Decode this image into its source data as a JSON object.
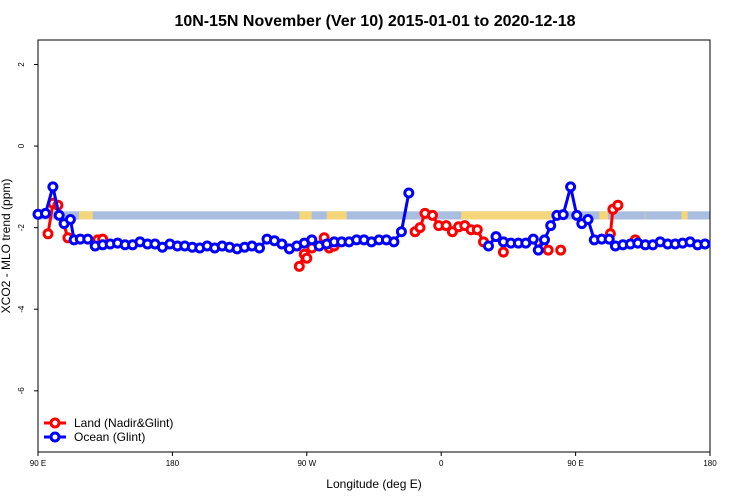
{
  "chart_data": {
    "type": "line",
    "title": "10N-15N November (Ver 10)   2015-01-01 to 2020-12-18",
    "xlabel": "Longitude (deg E)",
    "ylabel": "XCO2 - MLO trend (ppm)",
    "xlim": [
      -90,
      180
    ],
    "ylim": [
      -7.5,
      2.6
    ],
    "x_ticks": [
      {
        "value": -90,
        "label": "90 E"
      },
      {
        "value": -36,
        "label": "180"
      },
      {
        "value": 18,
        "label": "90 W"
      },
      {
        "value": 72,
        "label": "0"
      },
      {
        "value": 126,
        "label": "90 E"
      },
      {
        "value": 180,
        "label": "180"
      }
    ],
    "y_ticks": [
      2,
      0,
      -2,
      -4,
      -6
    ],
    "land_ocean_band": {
      "y_range": [
        -1.8,
        -1.6
      ],
      "ocean_color": "#a8bde0",
      "land_color": "#f5d67a",
      "land_intervals": [
        [
          -73.5,
          -68
        ],
        [
          15,
          20
        ],
        [
          26,
          34
        ],
        [
          80,
          117
        ],
        [
          135.5,
          139
        ],
        [
          153.8,
          154
        ],
        [
          168.5,
          171
        ]
      ]
    },
    "legend": "bottom-left",
    "series": [
      {
        "name": "Land (Nadir&Glint)",
        "color": "#ff0000",
        "segments": [
          [
            [
              -86,
              -2.15
            ],
            [
              -84,
              -1.4
            ],
            [
              -82,
              -1.45
            ],
            [
              -78,
              -2.25
            ]
          ],
          [
            [
              -66,
              -2.3
            ],
            [
              -64,
              -2.28
            ]
          ],
          [
            [
              15,
              -2.95
            ],
            [
              17,
              -2.65
            ],
            [
              18,
              -2.75
            ]
          ],
          [
            [
              20,
              -2.5
            ]
          ],
          [
            [
              25,
              -2.25
            ],
            [
              27,
              -2.5
            ],
            [
              29,
              -2.45
            ]
          ],
          [
            [
              61.5,
              -2.1
            ],
            [
              63.5,
              -2.0
            ],
            [
              65.5,
              -1.65
            ],
            [
              68.5,
              -1.7
            ],
            [
              71,
              -1.95
            ],
            [
              74,
              -1.95
            ],
            [
              76.5,
              -2.1
            ],
            [
              79,
              -1.98
            ],
            [
              81.5,
              -1.95
            ],
            [
              84,
              -2.05
            ],
            [
              86.5,
              -2.05
            ],
            [
              89,
              -2.35
            ]
          ],
          [
            [
              97,
              -2.6
            ]
          ],
          [
            [
              113,
              -2.48
            ],
            [
              115,
              -2.55
            ]
          ],
          [
            [
              120,
              -2.55
            ]
          ],
          [
            [
              140,
              -2.15
            ],
            [
              141,
              -1.55
            ],
            [
              143,
              -1.45
            ]
          ],
          [
            [
              150,
              -2.3
            ]
          ]
        ]
      },
      {
        "name": "Ocean (Glint)",
        "color": "#0000ff",
        "segments": [
          [
            [
              -90,
              -1.67
            ],
            [
              -87,
              -1.65
            ],
            [
              -84,
              -1.0
            ],
            [
              -81.5,
              -1.7
            ],
            [
              -79.5,
              -1.9
            ],
            [
              -77,
              -1.8
            ],
            [
              -75.5,
              -2.3
            ]
          ],
          [
            [
              -73,
              -2.28
            ],
            [
              -70,
              -2.28
            ],
            [
              -67,
              -2.45
            ],
            [
              -64,
              -2.42
            ],
            [
              -61,
              -2.4
            ],
            [
              -58,
              -2.38
            ],
            [
              -55,
              -2.42
            ],
            [
              -52,
              -2.42
            ],
            [
              -49,
              -2.35
            ],
            [
              -46,
              -2.4
            ],
            [
              -43,
              -2.4
            ],
            [
              -40,
              -2.48
            ],
            [
              -37,
              -2.4
            ],
            [
              -34,
              -2.45
            ],
            [
              -31,
              -2.45
            ],
            [
              -28,
              -2.48
            ],
            [
              -25,
              -2.5
            ],
            [
              -22,
              -2.45
            ],
            [
              -19,
              -2.5
            ],
            [
              -16,
              -2.45
            ],
            [
              -13,
              -2.48
            ],
            [
              -10,
              -2.52
            ],
            [
              -7,
              -2.48
            ],
            [
              -4,
              -2.45
            ],
            [
              -1,
              -2.5
            ],
            [
              2,
              -2.28
            ],
            [
              5,
              -2.32
            ],
            [
              8,
              -2.4
            ],
            [
              11,
              -2.52
            ],
            [
              14,
              -2.45
            ],
            [
              17,
              -2.38
            ],
            [
              20,
              -2.3
            ],
            [
              23,
              -2.45
            ],
            [
              26,
              -2.4
            ],
            [
              29,
              -2.35
            ],
            [
              32,
              -2.35
            ],
            [
              35,
              -2.35
            ],
            [
              38,
              -2.3
            ],
            [
              41,
              -2.3
            ],
            [
              44,
              -2.35
            ],
            [
              47,
              -2.3
            ],
            [
              50,
              -2.3
            ],
            [
              53,
              -2.35
            ],
            [
              56,
              -2.1
            ],
            [
              59,
              -1.15
            ]
          ],
          [
            [
              91,
              -2.45
            ],
            [
              94,
              -2.22
            ],
            [
              97,
              -2.35
            ],
            [
              100,
              -2.38
            ],
            [
              103,
              -2.38
            ],
            [
              106,
              -2.38
            ],
            [
              109,
              -2.28
            ],
            [
              111,
              -2.55
            ],
            [
              113.5,
              -2.3
            ],
            [
              116,
              -1.95
            ],
            [
              118.5,
              -1.7
            ],
            [
              121,
              -1.68
            ],
            [
              124,
              -1.0
            ],
            [
              126.5,
              -1.7
            ],
            [
              128.5,
              -1.9
            ],
            [
              131,
              -1.8
            ],
            [
              133.5,
              -2.3
            ]
          ],
          [
            [
              136.5,
              -2.28
            ],
            [
              139.5,
              -2.28
            ],
            [
              142,
              -2.45
            ],
            [
              145,
              -2.42
            ],
            [
              148,
              -2.4
            ],
            [
              151,
              -2.38
            ],
            [
              154,
              -2.42
            ],
            [
              157,
              -2.42
            ],
            [
              160,
              -2.35
            ],
            [
              163,
              -2.4
            ],
            [
              166,
              -2.4
            ],
            [
              169,
              -2.38
            ],
            [
              172,
              -2.35
            ],
            [
              175,
              -2.42
            ],
            [
              178,
              -2.4
            ]
          ]
        ]
      }
    ]
  }
}
